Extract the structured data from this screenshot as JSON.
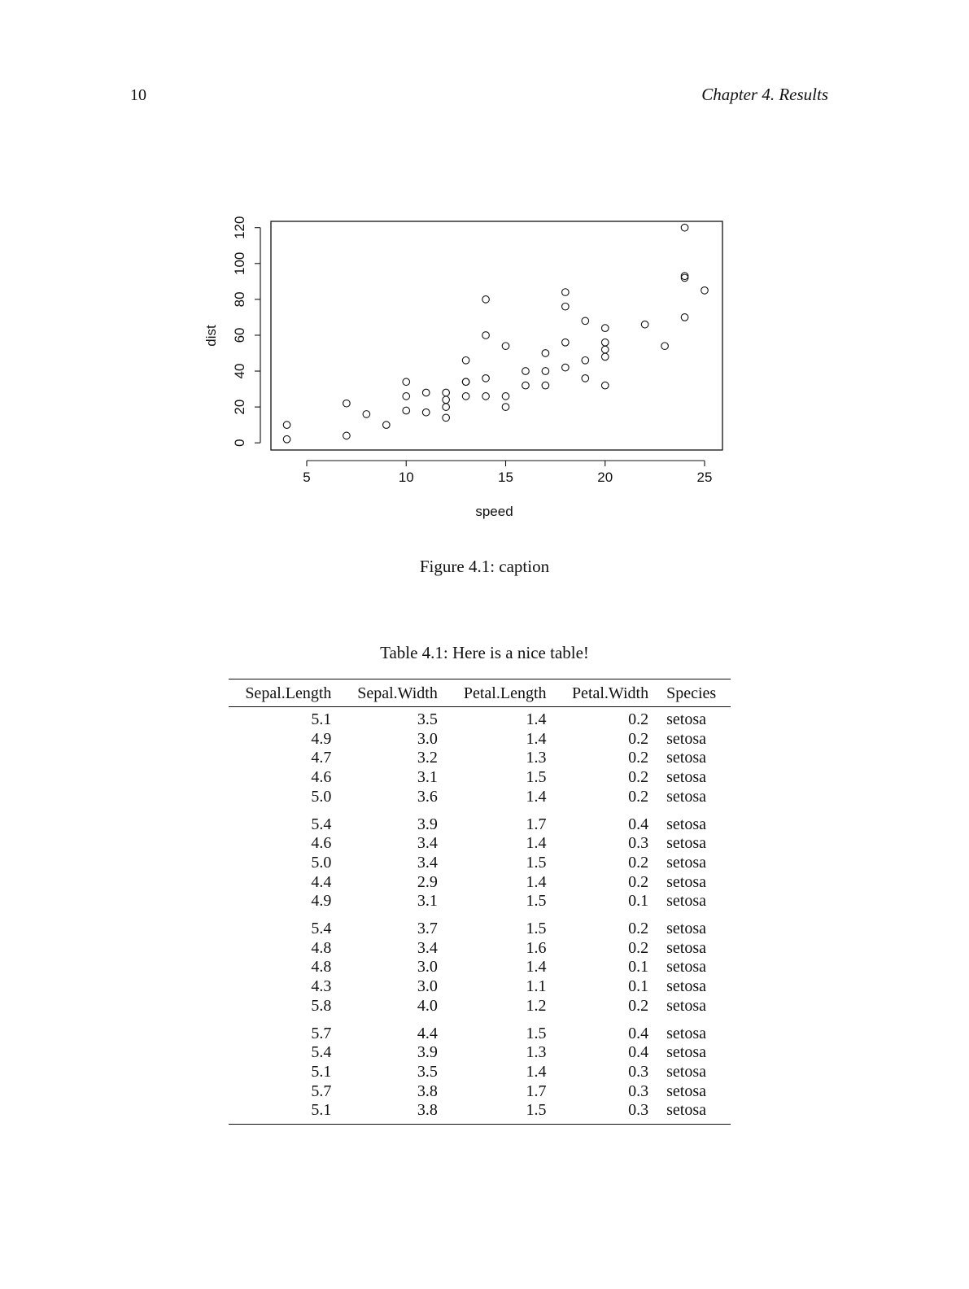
{
  "header": {
    "page_number": "10",
    "running_title": "Chapter 4. Results"
  },
  "figure": {
    "caption": "Figure 4.1: caption"
  },
  "chart_data": {
    "type": "scatter",
    "title": "",
    "xlabel": "speed",
    "ylabel": "dist",
    "xlim": [
      3.2,
      25.9
    ],
    "ylim": [
      -4,
      123.5
    ],
    "xticks": [
      5,
      10,
      15,
      20,
      25
    ],
    "yticks": [
      0,
      20,
      40,
      60,
      80,
      100,
      120
    ],
    "grid": false,
    "marker": "open-circle",
    "points": [
      [
        4,
        2
      ],
      [
        4,
        10
      ],
      [
        7,
        4
      ],
      [
        7,
        22
      ],
      [
        8,
        16
      ],
      [
        9,
        10
      ],
      [
        10,
        18
      ],
      [
        10,
        26
      ],
      [
        10,
        34
      ],
      [
        11,
        17
      ],
      [
        11,
        28
      ],
      [
        12,
        14
      ],
      [
        12,
        20
      ],
      [
        12,
        24
      ],
      [
        12,
        28
      ],
      [
        13,
        26
      ],
      [
        13,
        34
      ],
      [
        13,
        34
      ],
      [
        13,
        46
      ],
      [
        14,
        26
      ],
      [
        14,
        36
      ],
      [
        14,
        60
      ],
      [
        14,
        80
      ],
      [
        15,
        20
      ],
      [
        15,
        26
      ],
      [
        15,
        54
      ],
      [
        16,
        32
      ],
      [
        16,
        40
      ],
      [
        17,
        32
      ],
      [
        17,
        40
      ],
      [
        17,
        50
      ],
      [
        18,
        42
      ],
      [
        18,
        56
      ],
      [
        18,
        76
      ],
      [
        18,
        84
      ],
      [
        19,
        36
      ],
      [
        19,
        46
      ],
      [
        19,
        68
      ],
      [
        20,
        32
      ],
      [
        20,
        48
      ],
      [
        20,
        52
      ],
      [
        20,
        56
      ],
      [
        20,
        64
      ],
      [
        22,
        66
      ],
      [
        23,
        54
      ],
      [
        24,
        70
      ],
      [
        24,
        92
      ],
      [
        24,
        93
      ],
      [
        24,
        120
      ],
      [
        25,
        85
      ]
    ]
  },
  "table": {
    "caption": "Table 4.1: Here is a nice table!",
    "columns": [
      "Sepal.Length",
      "Sepal.Width",
      "Petal.Length",
      "Petal.Width",
      "Species"
    ],
    "rows": [
      [
        "5.1",
        "3.5",
        "1.4",
        "0.2",
        "setosa"
      ],
      [
        "4.9",
        "3.0",
        "1.4",
        "0.2",
        "setosa"
      ],
      [
        "4.7",
        "3.2",
        "1.3",
        "0.2",
        "setosa"
      ],
      [
        "4.6",
        "3.1",
        "1.5",
        "0.2",
        "setosa"
      ],
      [
        "5.0",
        "3.6",
        "1.4",
        "0.2",
        "setosa"
      ],
      [
        "5.4",
        "3.9",
        "1.7",
        "0.4",
        "setosa"
      ],
      [
        "4.6",
        "3.4",
        "1.4",
        "0.3",
        "setosa"
      ],
      [
        "5.0",
        "3.4",
        "1.5",
        "0.2",
        "setosa"
      ],
      [
        "4.4",
        "2.9",
        "1.4",
        "0.2",
        "setosa"
      ],
      [
        "4.9",
        "3.1",
        "1.5",
        "0.1",
        "setosa"
      ],
      [
        "5.4",
        "3.7",
        "1.5",
        "0.2",
        "setosa"
      ],
      [
        "4.8",
        "3.4",
        "1.6",
        "0.2",
        "setosa"
      ],
      [
        "4.8",
        "3.0",
        "1.4",
        "0.1",
        "setosa"
      ],
      [
        "4.3",
        "3.0",
        "1.1",
        "0.1",
        "setosa"
      ],
      [
        "5.8",
        "4.0",
        "1.2",
        "0.2",
        "setosa"
      ],
      [
        "5.7",
        "4.4",
        "1.5",
        "0.4",
        "setosa"
      ],
      [
        "5.4",
        "3.9",
        "1.3",
        "0.4",
        "setosa"
      ],
      [
        "5.1",
        "3.5",
        "1.4",
        "0.3",
        "setosa"
      ],
      [
        "5.7",
        "3.8",
        "1.7",
        "0.3",
        "setosa"
      ],
      [
        "5.1",
        "3.8",
        "1.5",
        "0.3",
        "setosa"
      ]
    ]
  }
}
